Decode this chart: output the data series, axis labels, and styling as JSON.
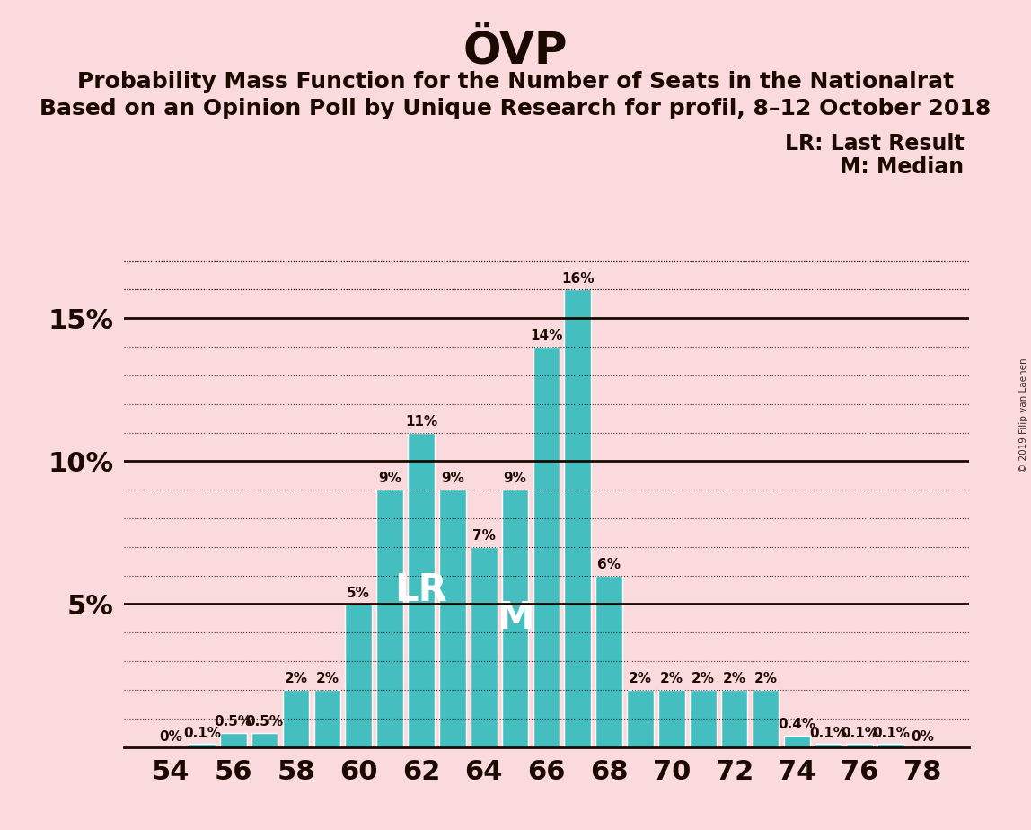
{
  "title": "ÖVP",
  "subtitle1": "Probability Mass Function for the Number of Seats in the Nationalrat",
  "subtitle2": "Based on an Opinion Poll by Unique Research for profil, 8–12 October 2018",
  "legend_lr": "LR: Last Result",
  "legend_m": "M: Median",
  "watermark": "© 2019 Filip van Laenen",
  "seats": [
    54,
    55,
    56,
    57,
    58,
    59,
    60,
    61,
    62,
    63,
    64,
    65,
    66,
    67,
    68,
    69,
    70,
    71,
    72,
    73,
    74,
    75,
    76,
    77,
    78
  ],
  "values": [
    0.0,
    0.1,
    0.5,
    0.5,
    2.0,
    2.0,
    5.0,
    9.0,
    11.0,
    9.0,
    7.0,
    9.0,
    14.0,
    16.0,
    6.0,
    2.0,
    2.0,
    2.0,
    2.0,
    2.0,
    0.4,
    0.1,
    0.1,
    0.1,
    0.0
  ],
  "labels": [
    "0%",
    "0.1%",
    "0.5%",
    "0.5%",
    "2%",
    "2%",
    "5%",
    "9%",
    "11%",
    "9%",
    "7%",
    "9%",
    "14%",
    "16%",
    "6%",
    "2%",
    "2%",
    "2%",
    "2%",
    "2%",
    "0.4%",
    "0.1%",
    "0.1%",
    "0.1%",
    "0%"
  ],
  "lr_seat": 62,
  "median_seat": 65,
  "bar_color": "#45bec0",
  "background_color": "#fadadd",
  "text_color": "#1a0a00",
  "title_fontsize": 36,
  "subtitle_fontsize": 18,
  "ytick_values": [
    0,
    5,
    10,
    15
  ],
  "ylim": [
    0,
    18
  ],
  "bar_label_fontsize": 11,
  "solid_lines": [
    5,
    10,
    15
  ],
  "dotted_line_step": 1,
  "dotted_lines": [
    1,
    2,
    3,
    4,
    6,
    7,
    8,
    9,
    11,
    12,
    13,
    14,
    16,
    17
  ]
}
